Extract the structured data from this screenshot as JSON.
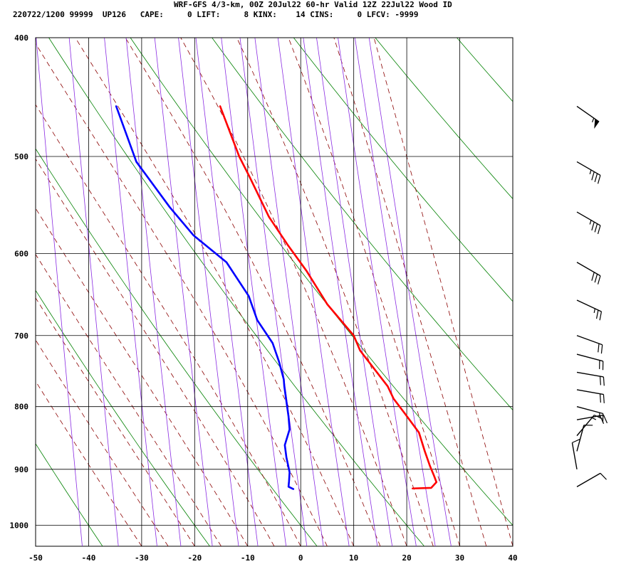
{
  "header": {
    "title": "WRF-GFS 4/3-km, 00Z 20Jul22 60-hr Valid 12Z 22Jul22 Wood ID",
    "info": "220722/1200 99999  UP126   CAPE:     0 LIFT:     8 KINX:    14 CINS:     0 LFCV: -9999"
  },
  "colors": {
    "temperature": "#ff0000",
    "dewpoint": "#0000ff",
    "dry_adiabat": "#008000",
    "moist_adiabat": "#8b0000",
    "mixing_ratio": "#8a2be2",
    "grid": "#000000",
    "wind_barb": "#000000"
  },
  "chart_data": {
    "type": "line",
    "title": "WRF-GFS 4/3-km, 00Z 20Jul22 60-hr Valid 12Z 22Jul22 Wood ID",
    "skew_t_log_p": true,
    "xlim": [
      -50,
      40
    ],
    "ylim": [
      1040,
      400
    ],
    "y_scale": "log (inverted)",
    "x_ticks": [
      -50,
      -40,
      -30,
      -20,
      -10,
      0,
      10,
      20,
      30,
      40
    ],
    "y_ticks": [
      400,
      500,
      600,
      700,
      800,
      900,
      1000
    ],
    "grid": true,
    "indices": {
      "CAPE": 0,
      "LIFT": 8,
      "KINX": 14,
      "CINS": 0,
      "LFCV": -9999
    },
    "series": [
      {
        "key": "temperature",
        "points": [
          [
            21.1,
            933
          ],
          [
            24.6,
            932
          ],
          [
            25.6,
            922
          ],
          [
            25.1,
            910
          ],
          [
            24.4,
            895
          ],
          [
            23.4,
            870
          ],
          [
            22.3,
            840
          ],
          [
            19.6,
            810
          ],
          [
            17.5,
            788
          ],
          [
            16.4,
            770
          ],
          [
            11.2,
            720
          ],
          [
            10.0,
            700
          ],
          [
            5.0,
            660
          ],
          [
            1.1,
            620
          ],
          [
            -2.5,
            590
          ],
          [
            -6.0,
            560
          ],
          [
            -9.6,
            520
          ],
          [
            -11.6,
            500
          ],
          [
            -15.2,
            455
          ]
        ]
      },
      {
        "key": "dewpoint",
        "points": [
          [
            -1.4,
            934
          ],
          [
            -2.3,
            930
          ],
          [
            -2.2,
            920
          ],
          [
            -2.1,
            905
          ],
          [
            -2.7,
            880
          ],
          [
            -3.0,
            860
          ],
          [
            -2.1,
            835
          ],
          [
            -2.3,
            815
          ],
          [
            -3.1,
            770
          ],
          [
            -3.2,
            760
          ],
          [
            -4.1,
            735
          ],
          [
            -5.3,
            710
          ],
          [
            -8.2,
            680
          ],
          [
            -9.8,
            650
          ],
          [
            -14.0,
            610
          ],
          [
            -20.2,
            580
          ],
          [
            -24.7,
            550
          ],
          [
            -31.0,
            505
          ],
          [
            -34.8,
            455
          ]
        ]
      }
    ],
    "wind_barbs": [
      {
        "p": 455,
        "dir": 235,
        "kt": 55
      },
      {
        "p": 505,
        "dir": 240,
        "kt": 35
      },
      {
        "p": 555,
        "dir": 240,
        "kt": 35
      },
      {
        "p": 610,
        "dir": 240,
        "kt": 30
      },
      {
        "p": 655,
        "dir": 245,
        "kt": 25
      },
      {
        "p": 700,
        "dir": 250,
        "kt": 20
      },
      {
        "p": 725,
        "dir": 255,
        "kt": 20
      },
      {
        "p": 750,
        "dir": 260,
        "kt": 20
      },
      {
        "p": 775,
        "dir": 260,
        "kt": 20
      },
      {
        "p": 800,
        "dir": 255,
        "kt": 15
      },
      {
        "p": 820,
        "dir": 280,
        "kt": 20
      },
      {
        "p": 845,
        "dir": 320,
        "kt": 15
      },
      {
        "p": 870,
        "dir": 345,
        "kt": 10
      },
      {
        "p": 900,
        "dir": 10,
        "kt": 10
      },
      {
        "p": 930,
        "dir": 300,
        "kt": 10
      }
    ]
  }
}
